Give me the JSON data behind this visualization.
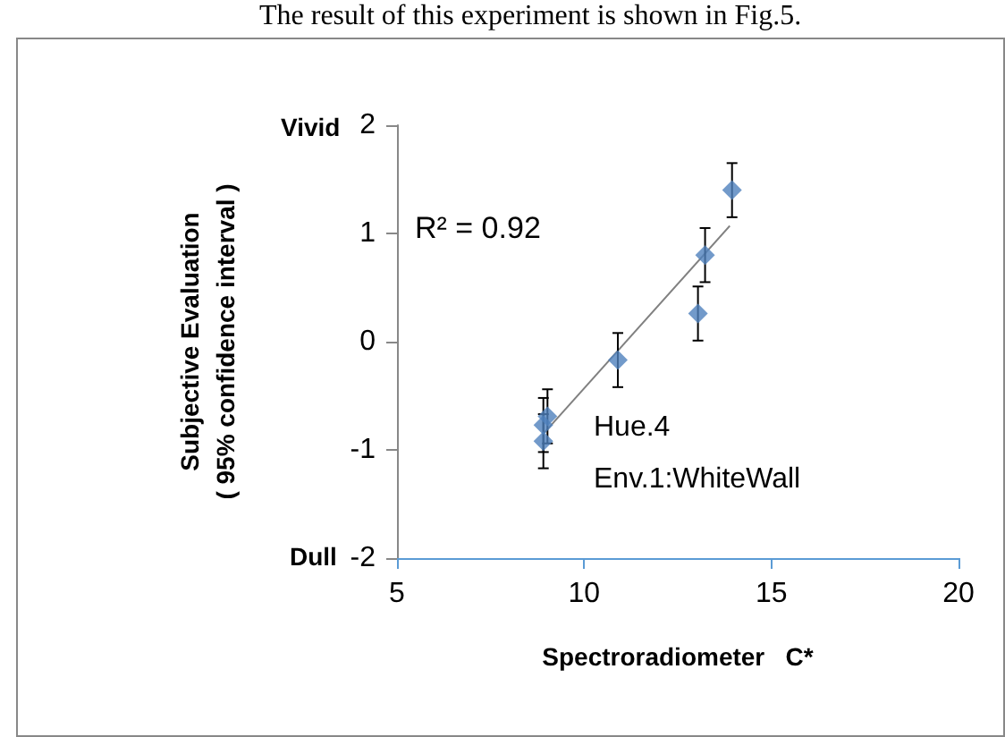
{
  "chart_data": {
    "type": "scatter",
    "xlabel": "Spectroradiometer   C*",
    "ylabel": "Subjective Evaluation\n( 95% confidence interval )",
    "annotations": [
      "The result of this experiment is shown in Fig.5.",
      "Vivid",
      "Dull",
      "R² = 0.92",
      "Hue.4",
      "Env.1:WhiteWall"
    ],
    "series": [
      {
        "color": "#4f81bd",
        "x": [
          13.95,
          13.23,
          13.04,
          10.9,
          9.02,
          8.91,
          8.91
        ],
        "values": [
          1.4,
          0.8,
          0.26,
          -0.17,
          -0.69,
          -0.77,
          -0.92
        ],
        "errors": [
          0.25,
          0.25,
          0.25,
          0.25,
          0.25,
          0.25,
          0.25
        ],
        "marker": "diamond"
      },
      {
        "type": "line",
        "color": "#808080",
        "x": [
          8.94,
          13.89
        ],
        "values": [
          -0.84,
          1.07
        ],
        "marker": "none"
      }
    ],
    "xlim": [
      5,
      20
    ],
    "xticks": [
      5,
      10,
      15,
      20
    ],
    "ylim": [
      -2,
      2
    ],
    "yticks": [
      -2,
      -1,
      0,
      1,
      2
    ],
    "grid": false
  }
}
